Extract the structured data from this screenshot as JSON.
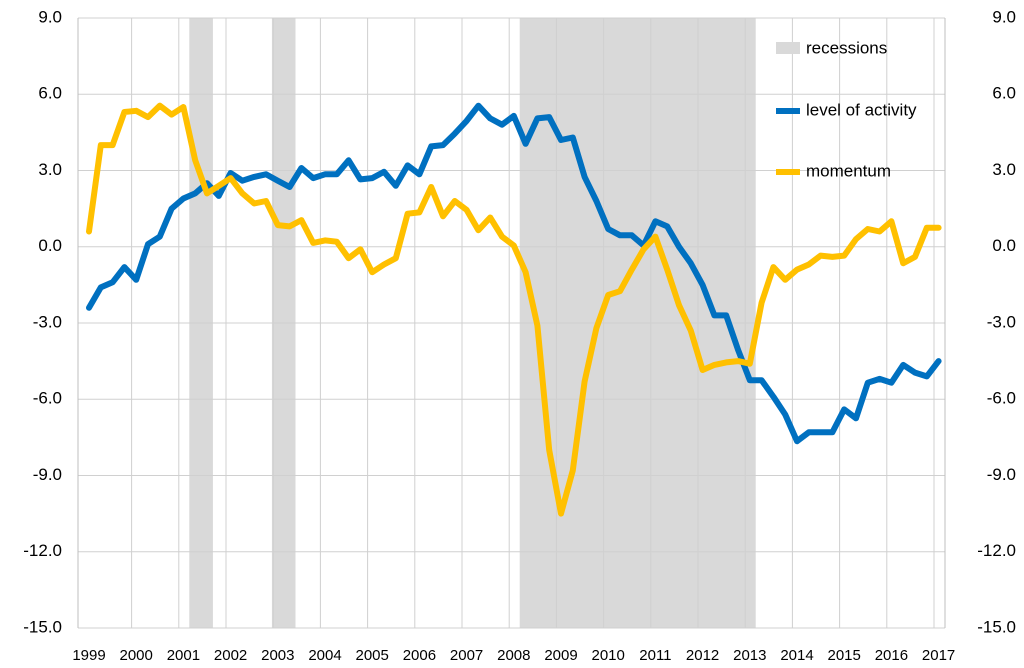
{
  "chart_data": {
    "type": "line",
    "categories": [
      "1999",
      null,
      null,
      null,
      "2000",
      null,
      null,
      null,
      "2001",
      null,
      null,
      null,
      "2002",
      null,
      null,
      null,
      "2003",
      null,
      null,
      null,
      "2004",
      null,
      null,
      null,
      "2005",
      null,
      null,
      null,
      "2006",
      null,
      null,
      null,
      "2007",
      null,
      null,
      null,
      "2008",
      null,
      null,
      null,
      "2009",
      null,
      null,
      null,
      "2010",
      null,
      null,
      null,
      "2011",
      null,
      null,
      null,
      "2012",
      null,
      null,
      null,
      "2013",
      null,
      null,
      null,
      "2014",
      null,
      null,
      null,
      "2015",
      null,
      null,
      null,
      "2016",
      null,
      null,
      null,
      "2017"
    ],
    "recessions": {
      "name": "recessions",
      "color": "#d9d9d9",
      "ranges": [
        [
          8.5,
          10.5
        ],
        [
          15.5,
          17.5
        ],
        [
          36.5,
          56.5
        ]
      ]
    },
    "series": [
      {
        "name": "level of activity",
        "color": "#0070c0",
        "values": [
          -2.4,
          -1.6,
          -1.4,
          -0.8,
          -1.3,
          0.1,
          0.4,
          1.5,
          1.9,
          2.1,
          2.5,
          2.0,
          2.9,
          2.6,
          2.75,
          2.85,
          2.6,
          2.35,
          3.1,
          2.7,
          2.85,
          2.85,
          3.4,
          2.65,
          2.7,
          2.95,
          2.4,
          3.2,
          2.85,
          3.95,
          4.0,
          4.45,
          4.95,
          5.55,
          5.05,
          4.8,
          5.15,
          4.05,
          5.05,
          5.1,
          4.2,
          4.3,
          2.75,
          1.8,
          0.7,
          0.45,
          0.45,
          0.05,
          1.0,
          0.8,
          0.0,
          -0.65,
          -1.5,
          -2.7,
          -2.7,
          -4.05,
          -5.25,
          -5.25,
          -5.9,
          -6.6,
          -7.65,
          -7.3,
          -7.3,
          -7.3,
          -6.4,
          -6.75,
          -5.35,
          -5.2,
          -5.35,
          -4.65,
          -4.95,
          -5.1,
          -4.5
        ]
      },
      {
        "name": "momentum",
        "color": "#ffc000",
        "axis": "y2",
        "values": [
          0.6,
          4.0,
          4.0,
          5.3,
          5.35,
          5.1,
          5.55,
          5.2,
          5.5,
          3.4,
          2.1,
          2.4,
          2.7,
          2.1,
          1.7,
          1.8,
          0.85,
          0.8,
          1.05,
          0.15,
          0.25,
          0.2,
          -0.45,
          -0.1,
          -1.0,
          -0.7,
          -0.45,
          1.3,
          1.35,
          2.35,
          1.2,
          1.8,
          1.45,
          0.65,
          1.15,
          0.4,
          0.05,
          -1.0,
          -3.1,
          -8.0,
          -10.5,
          -8.8,
          -5.3,
          -3.2,
          -1.9,
          -1.75,
          -0.9,
          -0.1,
          0.4,
          -0.9,
          -2.3,
          -3.3,
          -4.85,
          -4.65,
          -4.55,
          -4.5,
          -4.6,
          -2.2,
          -0.8,
          -1.3,
          -0.9,
          -0.7,
          -0.35,
          -0.4,
          -0.35,
          0.3,
          0.7,
          0.6,
          1.0,
          -0.65,
          -0.4,
          0.75,
          0.75
        ]
      }
    ],
    "ylim": [
      -15,
      9
    ],
    "yticks": [
      {
        "value": -15,
        "label": "-15.0"
      },
      {
        "value": -12,
        "label": "-12.0"
      },
      {
        "value": -9,
        "label": "-9.0"
      },
      {
        "value": -6,
        "label": "-6.0"
      },
      {
        "value": -3,
        "label": "-3.0"
      },
      {
        "value": 0,
        "label": "0.0"
      },
      {
        "value": 3,
        "label": "3.0"
      },
      {
        "value": 6,
        "label": "6.0"
      },
      {
        "value": 9,
        "label": "9.0"
      }
    ],
    "y2lim": [
      -15,
      9
    ],
    "y2ticks": [
      {
        "value": -15,
        "label": "-15.0"
      },
      {
        "value": -12,
        "label": "-12.0"
      },
      {
        "value": -9,
        "label": "-9.0"
      },
      {
        "value": -6,
        "label": "-6.0"
      },
      {
        "value": -3,
        "label": "-3.0"
      },
      {
        "value": 0,
        "label": "0.0"
      },
      {
        "value": 3,
        "label": "3.0"
      },
      {
        "value": 6,
        "label": "6.0"
      },
      {
        "value": 9,
        "label": "9.0"
      }
    ],
    "grid": true,
    "legend": "top-right"
  }
}
